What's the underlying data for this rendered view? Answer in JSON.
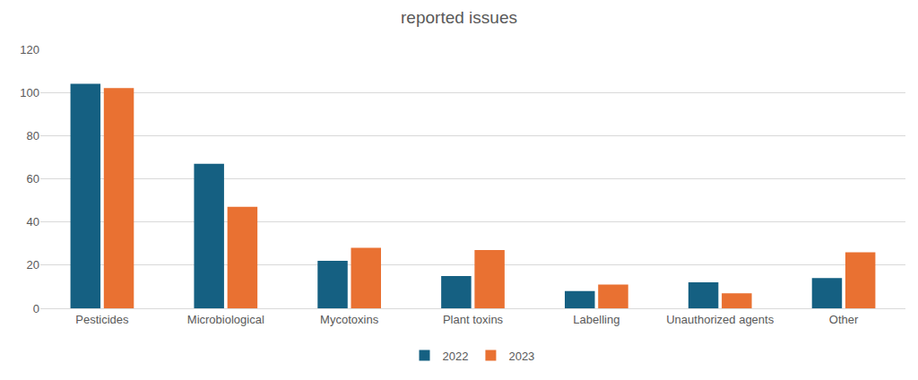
{
  "chart_data": {
    "type": "bar",
    "title": "reported issues",
    "categories": [
      "Pesticides",
      "Microbiological",
      "Mycotoxins",
      "Plant toxins",
      "Labelling",
      "Unauthorized agents",
      "Other"
    ],
    "series": [
      {
        "name": "2022",
        "color": "#156082",
        "values": [
          104,
          67,
          22,
          15,
          8,
          12,
          14
        ]
      },
      {
        "name": "2023",
        "color": "#E97132",
        "values": [
          102,
          47,
          28,
          27,
          11,
          7,
          26
        ]
      }
    ],
    "ylim": [
      0,
      120
    ],
    "yticks": [
      0,
      20,
      40,
      60,
      80,
      100,
      120
    ],
    "grid": true,
    "legend": "bottom"
  }
}
